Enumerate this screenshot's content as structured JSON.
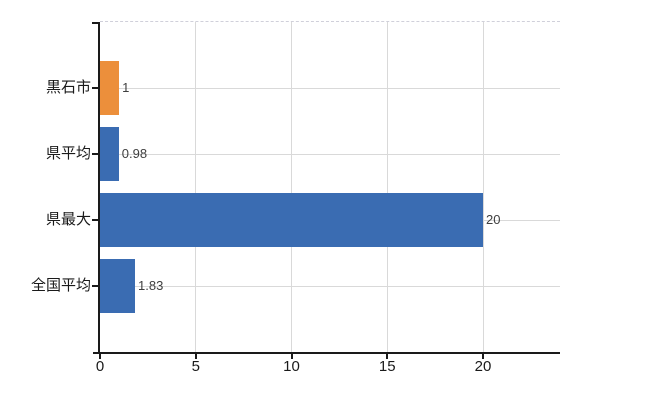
{
  "chart_data": {
    "type": "bar",
    "orientation": "horizontal",
    "title": "",
    "xlabel": "",
    "ylabel": "",
    "categories": [
      "黒石市",
      "県平均",
      "県最大",
      "全国平均"
    ],
    "values": [
      1,
      0.98,
      20,
      1.83
    ],
    "value_labels": [
      "1",
      "0.98",
      "20",
      "1.83"
    ],
    "series": [
      {
        "name": "values",
        "values": [
          1,
          0.98,
          20,
          1.83
        ],
        "colors": [
          "#ec8f3b",
          "#3a6cb2",
          "#3a6cb2",
          "#3a6cb2"
        ]
      }
    ],
    "xlim": [
      0,
      24
    ],
    "x_ticks": [
      0,
      5,
      10,
      15,
      20
    ],
    "x_tick_labels": [
      "0",
      "5",
      "10",
      "15",
      "20"
    ],
    "grid": true,
    "legend": "none"
  },
  "colors": {
    "highlight_bar": "#ec8f3b",
    "default_bar": "#3a6cb2",
    "gridline": "#d9d9d9",
    "top_border": "#d0d0da",
    "axis": "#1a1a1a",
    "value_label": "#3f3f3f",
    "tick_label": "#1a1a1a",
    "background": "#ffffff"
  }
}
